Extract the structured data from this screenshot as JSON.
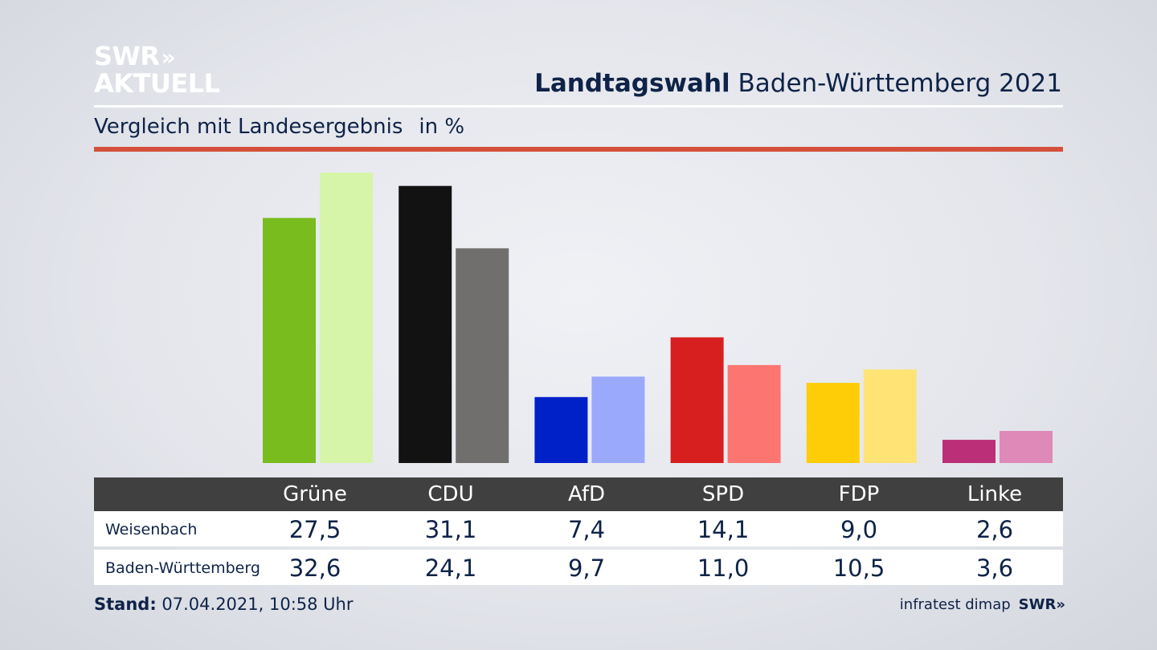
{
  "branding": {
    "logo_line1": "SWR",
    "logo_chevrons": "»",
    "logo_line2": "AKTUELL"
  },
  "header": {
    "title_bold": "Landtagswahl",
    "title_rest": " Baden-Württemberg 2021"
  },
  "subtitle": {
    "text": "Vergleich mit Landesergebnis",
    "unit": "in %"
  },
  "chart_data": {
    "type": "bar",
    "title": "Landtagswahl Baden-Württemberg 2021",
    "subtitle": "Vergleich mit Landesergebnis",
    "unit": "in %",
    "categories": [
      "Grüne",
      "CDU",
      "AfD",
      "SPD",
      "FDP",
      "Linke"
    ],
    "series": [
      {
        "name": "Weisenbach",
        "values": [
          27.5,
          31.1,
          7.4,
          14.1,
          9.0,
          2.6
        ],
        "colors": [
          "#78bc1e",
          "#121212",
          "#0020c8",
          "#d81f1f",
          "#ffcc08",
          "#ba2f77"
        ]
      },
      {
        "name": "Baden-Württemberg",
        "values": [
          32.6,
          24.1,
          9.7,
          11.0,
          10.5,
          3.6
        ],
        "colors": [
          "#d6f5a8",
          "#706f6d",
          "#9aa9fc",
          "#fc7571",
          "#ffe374",
          "#de89b8"
        ]
      }
    ],
    "ylim": [
      0,
      32.6
    ],
    "grid": false,
    "legend": "table-below"
  },
  "table": {
    "headers": [
      "Grüne",
      "CDU",
      "AfD",
      "SPD",
      "FDP",
      "Linke"
    ],
    "rows": [
      {
        "label": "Weisenbach",
        "values": [
          "27,5",
          "31,1",
          "7,4",
          "14,1",
          "9,0",
          "2,6"
        ]
      },
      {
        "label": "Baden-Württemberg",
        "values": [
          "32,6",
          "24,1",
          "9,7",
          "11,0",
          "10,5",
          "3,6"
        ]
      }
    ]
  },
  "footer": {
    "stand_label": "Stand:",
    "stand_value": " 07.04.2021, 10:58 Uhr",
    "source": "infratest dimap",
    "source_logo": "SWR",
    "source_chevrons": "»"
  }
}
